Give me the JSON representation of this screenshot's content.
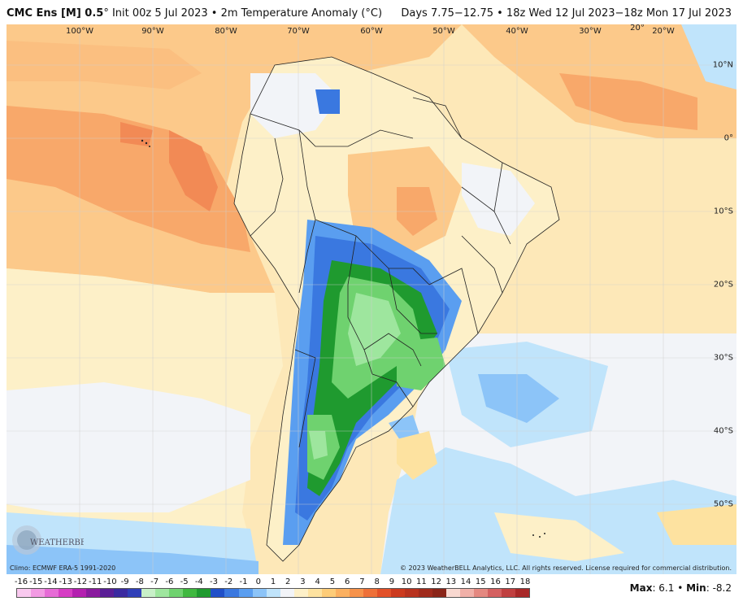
{
  "header": {
    "model": "CMC Ens [M] 0.5",
    "init": "° Init 00z 5 Jul 2023 • 2m Temperature Anomaly (°C)",
    "valid": "Days 7.75−12.75 • 18z Wed 12 Jul 2023−18z Mon 17 Jul 2023"
  },
  "lon_labels": [
    "100°W",
    "90°W",
    "80°W",
    "70°W",
    "60°W",
    "50°W",
    "40°W",
    "30°W",
    "20°W"
  ],
  "lat_labels": [
    "10°N",
    "0°",
    "10°S",
    "20°S",
    "30°S",
    "40°S",
    "50°S"
  ],
  "stray_label": "20°",
  "footer": {
    "climo": "Climo: ECMWF ERA-5 1991-2020",
    "copyright": "© 2023 WeatherBELL Analytics, LLC. All rights reserved. License required for commercial distribution.",
    "logo_text": "WEATHERBELL"
  },
  "colorbar": {
    "ticks": [
      "-16",
      "-15",
      "-14",
      "-13",
      "-12",
      "-11",
      "-10",
      "-9",
      "-8",
      "-7",
      "-6",
      "-5",
      "-4",
      "-3",
      "-2",
      "-1",
      "0",
      "1",
      "2",
      "3",
      "4",
      "5",
      "6",
      "7",
      "8",
      "9",
      "10",
      "11",
      "12",
      "13",
      "14",
      "15",
      "16",
      "17",
      "18"
    ],
    "colors": [
      "#f9c9ef",
      "#f29ae3",
      "#e66bd6",
      "#d63cc4",
      "#b41fb0",
      "#8a1a9e",
      "#5a1e96",
      "#3a2aa0",
      "#2f3fb8",
      "#c8f0c8",
      "#9ee69e",
      "#6fd26f",
      "#3fb83f",
      "#1f9a2f",
      "#1f4fc8",
      "#3a78e0",
      "#5a9ef0",
      "#8cc4f8",
      "#c0e4fb",
      "#f2f4f8",
      "#fdf0c8",
      "#fde2a0",
      "#fdcc78",
      "#fbb060",
      "#f6924a",
      "#ee7038",
      "#e25028",
      "#cc3a1e",
      "#b8321e",
      "#a02a1c",
      "#8a2418",
      "#f8d8d0",
      "#f0b0a8",
      "#e48880",
      "#d46060",
      "#c04040",
      "#a82828"
    ],
    "max_label": "Max",
    "max_value": "6.1",
    "min_label": "Min",
    "min_value": "-8.2"
  }
}
